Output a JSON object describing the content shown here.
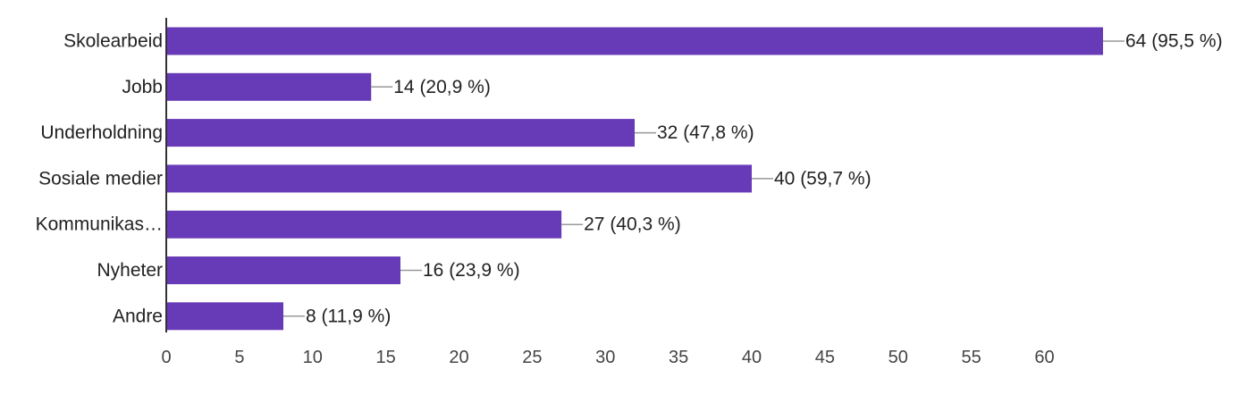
{
  "chart_data": {
    "type": "bar",
    "orientation": "horizontal",
    "categories": [
      "Skolearbeid",
      "Jobb",
      "Underholdning",
      "Sosiale medier",
      "Kommunikas…",
      "Nyheter",
      "Andre"
    ],
    "values": [
      64,
      14,
      32,
      40,
      27,
      16,
      8
    ],
    "data_labels": [
      "64 (95,5 %)",
      "14 (20,9 %)",
      "32 (47,8 %)",
      "40 (59,7 %)",
      "27 (40,3 %)",
      "16 (23,9 %)",
      "8 (11,9 %)"
    ],
    "x_ticks": [
      0,
      5,
      10,
      15,
      20,
      25,
      30,
      35,
      40,
      45,
      50,
      55,
      60
    ],
    "xlim": [
      0,
      64
    ],
    "title": "",
    "xlabel": "",
    "ylabel": "",
    "grid": false,
    "legend": "none",
    "colors": {
      "bar": "#673ab7",
      "axis": "#333333",
      "leader_line": "#999999",
      "text": "#222222"
    }
  }
}
